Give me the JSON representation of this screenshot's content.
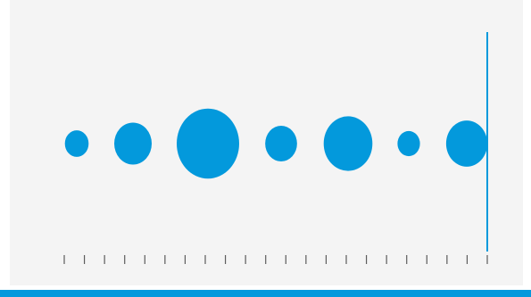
{
  "app": {
    "accent_color": "#0399dc",
    "panel_color": "#f4f4f4",
    "tick_color": "#5b5b5b"
  },
  "timeline": {
    "bubble_count": 7,
    "relative_sizes": [
      0.38,
      0.6,
      1.0,
      0.51,
      0.78,
      0.36,
      0.66
    ],
    "tick_count": 22,
    "playhead_position": 1.0
  }
}
